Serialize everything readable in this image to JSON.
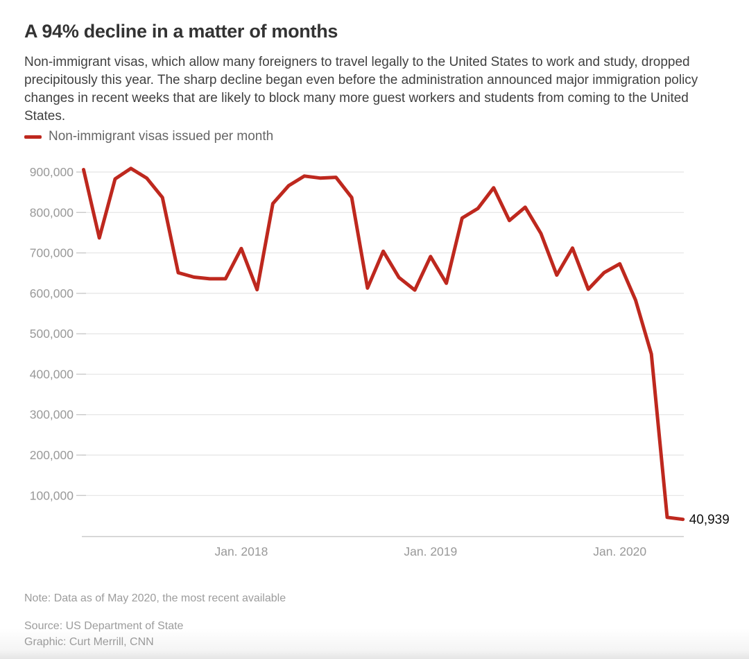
{
  "header": {
    "title": "A 94% decline in a matter of months",
    "description": "Non-immigrant visas, which allow many foreigners to travel legally to the United States to work and study, dropped precipitously this year. The sharp decline began even before the administration announced major immigration policy changes in recent weeks that are likely to block many more guest workers and students from coming to the United States."
  },
  "legend": {
    "label": "Non-immigrant visas issued per month",
    "swatch_color": "#be281e"
  },
  "chart_data": {
    "type": "line",
    "title": "Non-immigrant visas issued per month",
    "xlabel": "",
    "ylabel": "",
    "grid": true,
    "legend_position": "top-left",
    "line_color": "#be281e",
    "ylim": [
      0,
      920000
    ],
    "x": [
      "March 2017",
      "April 2017",
      "May 2017",
      "June 2017",
      "July 2017",
      "Aug. 2017",
      "Sept. 2017",
      "Oct. 2017",
      "Nov. 2017",
      "Dec. 2017",
      "Jan. 2018",
      "Feb. 2018",
      "March 2018",
      "April 2018",
      "May 2018",
      "June 2018",
      "July 2018",
      "Aug. 2018",
      "Sept. 2018",
      "Oct. 2018",
      "Nov. 2018",
      "Dec. 2018",
      "Jan. 2019",
      "Feb. 2019",
      "March 2019",
      "April 2019",
      "May 2019",
      "June 2019",
      "July 2019",
      "Aug. 2019",
      "Sept. 2019",
      "Oct. 2019",
      "Nov. 2019",
      "Dec. 2019",
      "Jan. 2020",
      "Feb. 2020",
      "March 2020",
      "April 2020",
      "May 2020"
    ],
    "series": [
      {
        "name": "Non-immigrant visas issued per month",
        "values": [
          906000,
          737000,
          883000,
          909000,
          885000,
          837000,
          651000,
          640000,
          636000,
          636000,
          711000,
          609000,
          822000,
          866000,
          890000,
          885000,
          887000,
          837000,
          613000,
          704000,
          639000,
          608000,
          691000,
          625000,
          786000,
          810000,
          861000,
          780000,
          813000,
          748000,
          645000,
          712000,
          610000,
          651000,
          673000,
          583000,
          450000,
          46000,
          40939
        ]
      }
    ],
    "y_ticks": [
      {
        "value": 900000,
        "label": "900,000"
      },
      {
        "value": 800000,
        "label": "800,000"
      },
      {
        "value": 700000,
        "label": "700,000"
      },
      {
        "value": 600000,
        "label": "600,000"
      },
      {
        "value": 500000,
        "label": "500,000"
      },
      {
        "value": 400000,
        "label": "400,000"
      },
      {
        "value": 300000,
        "label": "300,000"
      },
      {
        "value": 200000,
        "label": "200,000"
      },
      {
        "value": 100000,
        "label": "100,000"
      }
    ],
    "x_ticks": [
      {
        "label": "Jan. 2018",
        "index": 10
      },
      {
        "label": "Jan. 2019",
        "index": 22
      },
      {
        "label": "Jan. 2020",
        "index": 34
      }
    ],
    "end_label": "40,939"
  },
  "footer": {
    "note": "Note: Data as of May 2020, the most recent available",
    "source": "Source: US Department of State",
    "credit": "Graphic: Curt Merrill, CNN"
  }
}
